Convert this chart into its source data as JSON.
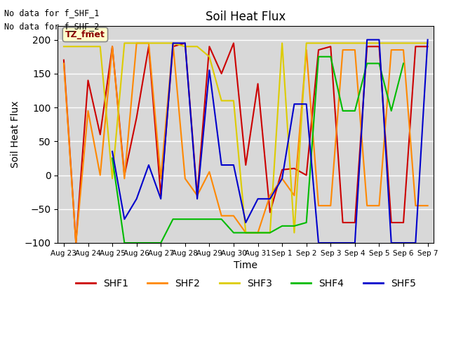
{
  "title": "Soil Heat Flux",
  "xlabel": "Time",
  "ylabel": "Soil Heat Flux",
  "ylim": [
    -100,
    220
  ],
  "yticks": [
    -100,
    -50,
    0,
    50,
    100,
    150,
    200
  ],
  "background_color": "#d8d8d8",
  "text_lines": [
    "No data for f_SHF_1",
    "No data for f_SHF_2"
  ],
  "tz_label": "TZ_fmet",
  "legend": [
    "SHF1",
    "SHF2",
    "SHF3",
    "SHF4",
    "SHF5"
  ],
  "colors": {
    "SHF1": "#cc0000",
    "SHF2": "#ff8800",
    "SHF3": "#ddcc00",
    "SHF4": "#00bb00",
    "SHF5": "#0000cc"
  },
  "x_labels": [
    "Aug 23",
    "Aug 24",
    "Aug 25",
    "Aug 26",
    "Aug 27",
    "Aug 28",
    "Aug 29",
    "Aug 30",
    "Aug 31",
    "Sep 1",
    "Sep 2",
    "Sep 3",
    "Sep 4",
    "Sep 5",
    "Sep 6",
    "Sep 7"
  ],
  "x_tick_positions": [
    0,
    2,
    4,
    6,
    8,
    10,
    12,
    14,
    16,
    18,
    20,
    22,
    24,
    26,
    28,
    30
  ],
  "SHF1_x": [
    0,
    1,
    2,
    3,
    4,
    5,
    6,
    7,
    8,
    9,
    10,
    11,
    12,
    13,
    14,
    15,
    16,
    17,
    18,
    19,
    20,
    21,
    22,
    23,
    24,
    25,
    26,
    27,
    28,
    29,
    30
  ],
  "SHF1": [
    170,
    -100,
    140,
    60,
    190,
    0,
    85,
    190,
    -30,
    190,
    195,
    -30,
    190,
    150,
    195,
    15,
    135,
    -55,
    8,
    10,
    0,
    185,
    190,
    -70,
    -70,
    190,
    190,
    -70,
    -70,
    190,
    190
  ],
  "SHF2_x": [
    0,
    1,
    2,
    3,
    4,
    5,
    6,
    7,
    8,
    9,
    10,
    11,
    12,
    13,
    14,
    15,
    16,
    17,
    18,
    19,
    20,
    21,
    22,
    23,
    24,
    25,
    26,
    27,
    28,
    29,
    30
  ],
  "SHF2": [
    165,
    -100,
    95,
    0,
    190,
    -5,
    195,
    195,
    -5,
    195,
    -5,
    -30,
    5,
    -60,
    -60,
    -85,
    -85,
    -30,
    -5,
    -30,
    185,
    -45,
    -45,
    185,
    185,
    -45,
    -45,
    185,
    185,
    -45,
    -45
  ],
  "SHF3_x": [
    0,
    1,
    2,
    3,
    4,
    5,
    6,
    7,
    8,
    9,
    10,
    11,
    12,
    13,
    14,
    15,
    16,
    17,
    18,
    19,
    20,
    21,
    22,
    23,
    24,
    25,
    26,
    27,
    28,
    29,
    30
  ],
  "SHF3": [
    190,
    190,
    190,
    190,
    -5,
    195,
    195,
    195,
    195,
    195,
    190,
    190,
    175,
    110,
    110,
    -85,
    -85,
    -85,
    195,
    -85,
    195,
    195,
    195,
    195,
    195,
    195,
    195,
    195,
    195,
    195,
    195
  ],
  "SHF4_x": [
    4,
    5,
    6,
    7,
    8,
    9,
    10,
    11,
    12,
    13,
    14,
    15,
    16,
    17,
    18,
    19,
    20,
    21,
    22,
    23,
    24,
    25,
    26,
    27,
    28
  ],
  "SHF4": [
    25,
    -100,
    -100,
    -100,
    -100,
    -65,
    -65,
    -65,
    -65,
    -65,
    -85,
    -85,
    -85,
    -85,
    -75,
    -75,
    -70,
    175,
    175,
    95,
    95,
    165,
    165,
    95,
    165
  ],
  "SHF5_x": [
    4,
    5,
    6,
    7,
    8,
    9,
    10,
    11,
    12,
    13,
    14,
    15,
    16,
    17,
    18,
    19,
    20,
    21,
    22,
    23,
    24,
    25,
    26,
    27,
    28,
    29,
    30
  ],
  "SHF5": [
    35,
    -65,
    -35,
    15,
    -35,
    195,
    195,
    -35,
    155,
    15,
    15,
    -70,
    -35,
    -35,
    -5,
    105,
    105,
    -100,
    -100,
    -100,
    -100,
    200,
    200,
    -100,
    -100,
    -100,
    200
  ]
}
